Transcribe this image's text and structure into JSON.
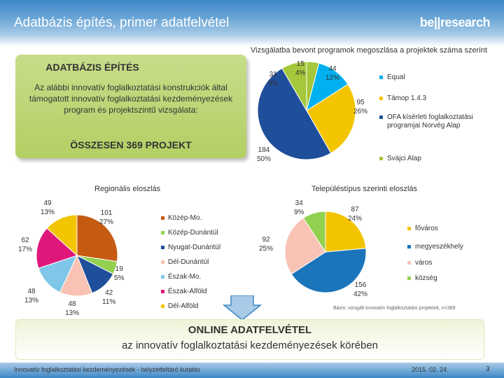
{
  "header": {
    "title": "Adatbázis építés, primer adatfelvétel",
    "logo": "be||research"
  },
  "intro": {
    "title": "ADATBÁZIS ÉPÍTÉS",
    "text": "Az alábbi innovatív foglalkoztatási konstrukciók által támogatott innovatív foglalkoztatási kezdeményezések program és projektszintű vizsgálata:",
    "total": "ÖSSZESEN 369 PROJEKT"
  },
  "chart_data": [
    {
      "type": "pie",
      "title": "Vizsgálatba bevont programok megoszlása a projektek száma szerint",
      "categories": [
        "Equal",
        "Támop 1.4.3",
        "OFA kísérleti foglalkoztatási programjai Norvég Alap",
        "Svájci Alap"
      ],
      "values": [
        44,
        95,
        184,
        31
      ],
      "extra_slice": {
        "value": 15,
        "label": "4%"
      },
      "labels": [
        {
          "value": "15",
          "pct": "4%"
        },
        {
          "value": "44",
          "pct": "12%"
        },
        {
          "value": "95",
          "pct": "26%"
        },
        {
          "value": "184",
          "pct": "50%"
        },
        {
          "value": "31",
          "pct": "8%"
        }
      ],
      "colors": [
        "#00b0f0",
        "#f2c500",
        "#1f4e9a",
        "#a5c73b"
      ]
    },
    {
      "type": "pie",
      "title": "Regionális eloszlás",
      "categories": [
        "Közép-Mo.",
        "Közép-Dunántúl",
        "Nyugat-Dunántúl",
        "Dél-Dunántúl",
        "Észak-Mo.",
        "Észak-Alföld",
        "Dél-Alföld"
      ],
      "values": [
        101,
        19,
        42,
        48,
        48,
        62,
        49
      ],
      "labels": [
        {
          "value": "101",
          "pct": "27%"
        },
        {
          "value": "19",
          "pct": "5%"
        },
        {
          "value": "42",
          "pct": "11%"
        },
        {
          "value": "48",
          "pct": "13%"
        },
        {
          "value": "48",
          "pct": "13%"
        },
        {
          "value": "62",
          "pct": "17%"
        },
        {
          "value": "49",
          "pct": "13%"
        }
      ],
      "colors": [
        "#c55a11",
        "#92d050",
        "#1f4e9a",
        "#f8c3b5",
        "#7fc6e8",
        "#e0177a",
        "#f2c500"
      ]
    },
    {
      "type": "pie",
      "title": "Településtípus szerinti eloszlás",
      "categories": [
        "főváros",
        "megyeszékhely",
        "város",
        "község"
      ],
      "values": [
        87,
        156,
        92,
        34
      ],
      "labels": [
        {
          "value": "87",
          "pct": "24%"
        },
        {
          "value": "156",
          "pct": "42%"
        },
        {
          "value": "92",
          "pct": "25%"
        },
        {
          "value": "34",
          "pct": "9%"
        }
      ],
      "colors": [
        "#f2c500",
        "#1b75bb",
        "#f8c3b5",
        "#92d050"
      ]
    }
  ],
  "basis": "Bázis: vizsgált innovatív foglalkoztatási projektek, n=369",
  "online": {
    "line1": "ONLINE ADATFELVÉTEL",
    "line2": "az innovatív foglalkoztatási kezdeményezések körében"
  },
  "footer": {
    "left": "Innovatív foglalkoztatási kezdeményezések - helyzetfeltáró kutatás",
    "date": "2015. 02. 24.",
    "page": "3"
  }
}
